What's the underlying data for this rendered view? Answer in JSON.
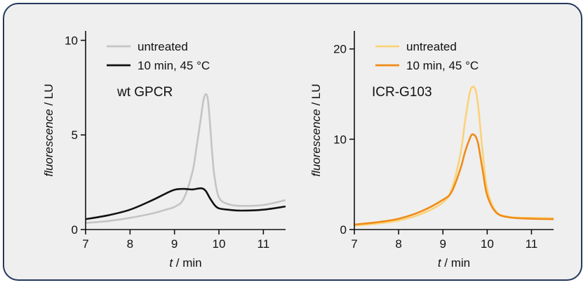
{
  "chart_data": [
    {
      "type": "line",
      "annotation": "wt GPCR",
      "xlabel": "t / min",
      "ylabel": "fluorescence / LU",
      "xlim": [
        7,
        11.5
      ],
      "ylim": [
        0,
        10.5
      ],
      "xticks": [
        7,
        8,
        9,
        10,
        11
      ],
      "yticks": [
        0,
        5,
        10
      ],
      "legend": "top-left",
      "series": [
        {
          "name": "untreated",
          "color": "#c4c4c4",
          "x": [
            7.0,
            7.5,
            8.0,
            8.5,
            8.8,
            9.0,
            9.2,
            9.4,
            9.5,
            9.6,
            9.65,
            9.7,
            9.75,
            9.8,
            9.85,
            9.9,
            10.0,
            10.2,
            10.5,
            11.0,
            11.5
          ],
          "y": [
            0.35,
            0.45,
            0.62,
            0.85,
            1.05,
            1.2,
            1.6,
            3.0,
            4.4,
            6.0,
            6.8,
            7.15,
            6.9,
            5.6,
            4.0,
            2.8,
            1.7,
            1.35,
            1.25,
            1.3,
            1.55
          ]
        },
        {
          "name": "10 min, 45 °C",
          "color": "#111111",
          "x": [
            7.0,
            7.5,
            8.0,
            8.5,
            8.8,
            9.0,
            9.2,
            9.4,
            9.6,
            9.7,
            9.8,
            9.9,
            10.0,
            10.2,
            10.5,
            11.0,
            11.5
          ],
          "y": [
            0.55,
            0.75,
            1.05,
            1.55,
            1.9,
            2.1,
            2.15,
            2.12,
            2.18,
            2.05,
            1.65,
            1.3,
            1.12,
            1.05,
            1.0,
            1.05,
            1.22
          ]
        }
      ]
    },
    {
      "type": "line",
      "annotation": "ICR-G103",
      "xlabel": "t / min",
      "ylabel": "fluorescence / LU",
      "xlim": [
        7,
        11.5
      ],
      "ylim": [
        0,
        22
      ],
      "xticks": [
        7,
        8,
        9,
        10,
        11
      ],
      "yticks": [
        0,
        10,
        20
      ],
      "legend": "top-left",
      "series": [
        {
          "name": "untreated",
          "color": "#fbd27a",
          "x": [
            7.0,
            7.5,
            8.0,
            8.5,
            9.0,
            9.2,
            9.4,
            9.5,
            9.6,
            9.65,
            9.7,
            9.75,
            9.8,
            9.9,
            10.0,
            10.2,
            10.5,
            11.0,
            11.5
          ],
          "y": [
            0.45,
            0.65,
            1.0,
            1.7,
            3.0,
            4.5,
            8.5,
            12.0,
            15.0,
            15.7,
            15.8,
            15.2,
            13.5,
            8.5,
            4.5,
            2.0,
            1.4,
            1.3,
            1.25
          ]
        },
        {
          "name": "10 min, 45 °C",
          "color": "#ef8c17",
          "x": [
            7.0,
            7.5,
            8.0,
            8.5,
            9.0,
            9.2,
            9.4,
            9.5,
            9.6,
            9.65,
            9.7,
            9.75,
            9.8,
            9.9,
            10.0,
            10.2,
            10.5,
            11.0,
            11.5
          ],
          "y": [
            0.55,
            0.8,
            1.2,
            2.0,
            3.3,
            4.2,
            6.8,
            8.6,
            10.0,
            10.5,
            10.5,
            10.2,
            9.4,
            6.5,
            3.8,
            1.9,
            1.35,
            1.2,
            1.15
          ]
        }
      ]
    }
  ]
}
